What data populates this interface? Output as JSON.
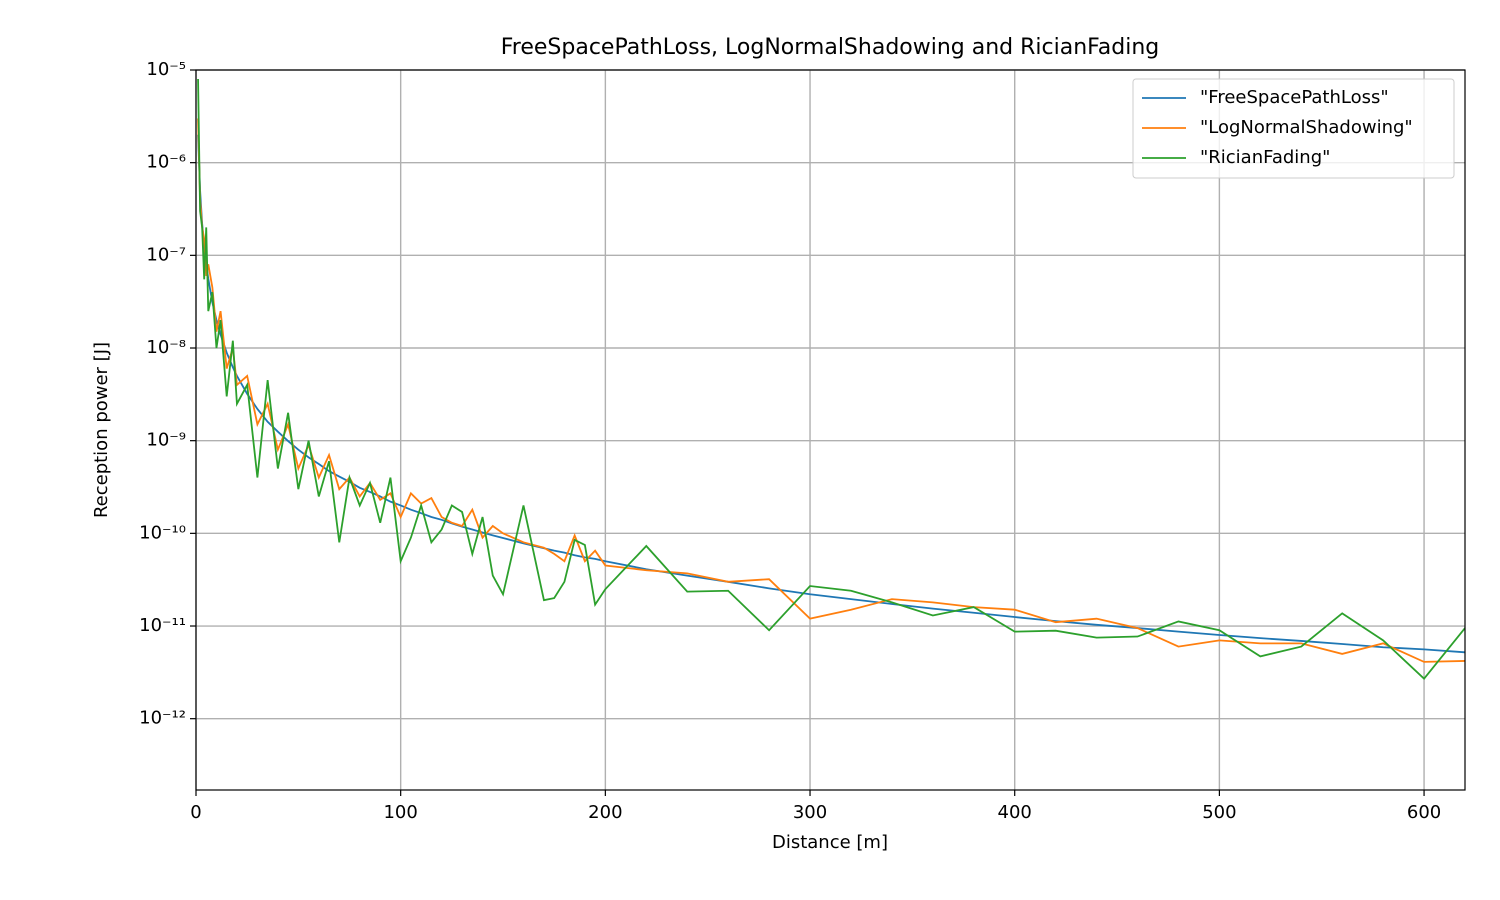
{
  "chart_data": {
    "type": "line",
    "title": "FreeSpacePathLoss, LogNormalShadowing and RicianFading",
    "x_label": "Distance [m]",
    "y_label": "Reception power [J]",
    "y_scale": "log",
    "grid": true,
    "legend": "upper right",
    "xlim": [
      0,
      620
    ],
    "ylim": [
      1.7e-13,
      1e-05
    ],
    "xticks": [
      0,
      100,
      200,
      300,
      400,
      500,
      600
    ],
    "yticks": [
      {
        "value": 1e-05,
        "label": "10⁻⁵"
      },
      {
        "value": 1e-06,
        "label": "10⁻⁶"
      },
      {
        "value": 1e-07,
        "label": "10⁻⁷"
      },
      {
        "value": 1e-08,
        "label": "10⁻⁸"
      },
      {
        "value": 1e-09,
        "label": "10⁻⁹"
      },
      {
        "value": 1e-10,
        "label": "10⁻¹⁰"
      },
      {
        "value": 1e-11,
        "label": "10⁻¹¹"
      },
      {
        "value": 1e-12,
        "label": "10⁻¹²"
      }
    ],
    "x": [
      1,
      2,
      3,
      4,
      5,
      6,
      8,
      10,
      12,
      15,
      18,
      20,
      25,
      30,
      35,
      40,
      45,
      50,
      55,
      60,
      65,
      70,
      75,
      80,
      85,
      90,
      95,
      100,
      105,
      110,
      115,
      120,
      125,
      130,
      135,
      140,
      145,
      150,
      160,
      170,
      175,
      180,
      185,
      190,
      195,
      200,
      220,
      240,
      260,
      280,
      300,
      320,
      340,
      360,
      380,
      400,
      420,
      440,
      460,
      480,
      500,
      520,
      540,
      560,
      580,
      600,
      620
    ],
    "series": [
      {
        "name": "\"FreeSpacePathLoss\"",
        "color": "#1f77b4",
        "values": [
          2e-06,
          5e-07,
          2.2e-07,
          1.25e-07,
          8e-08,
          5.6e-08,
          3.1e-08,
          2e-08,
          1.4e-08,
          8.9e-09,
          6.2e-09,
          5e-09,
          3.2e-09,
          2.2e-09,
          1.6e-09,
          1.25e-09,
          9.9e-10,
          8e-10,
          6.6e-10,
          5.6e-10,
          4.7e-10,
          4.1e-10,
          3.6e-10,
          3.1e-10,
          2.8e-10,
          2.5e-10,
          2.2e-10,
          2e-10,
          1.8e-10,
          1.65e-10,
          1.5e-10,
          1.4e-10,
          1.28e-10,
          1.18e-10,
          1.1e-10,
          1.02e-10,
          9.5e-11,
          8.9e-11,
          7.8e-11,
          6.9e-11,
          6.5e-11,
          6.2e-11,
          5.8e-11,
          5.5e-11,
          5.3e-11,
          5e-11,
          4.1e-11,
          3.5e-11,
          3e-11,
          2.55e-11,
          2.2e-11,
          1.95e-11,
          1.73e-11,
          1.54e-11,
          1.39e-11,
          1.25e-11,
          1.13e-11,
          1.03e-11,
          9.5e-12,
          8.7e-12,
          8e-12,
          7.4e-12,
          6.9e-12,
          6.4e-12,
          5.9e-12,
          5.6e-12,
          5.2e-12
        ]
      },
      {
        "name": "\"LogNormalShadowing\"",
        "color": "#ff7f0e",
        "values": [
          3e-06,
          4e-07,
          2e-07,
          1.5e-07,
          6e-08,
          8e-08,
          4.5e-08,
          1.5e-08,
          2.5e-08,
          6e-09,
          1e-08,
          4e-09,
          5e-09,
          1.5e-09,
          2.5e-09,
          8e-10,
          1.5e-09,
          5e-10,
          9e-10,
          4e-10,
          7e-10,
          3e-10,
          4e-10,
          2.5e-10,
          3.5e-10,
          2.3e-10,
          2.7e-10,
          1.5e-10,
          2.7e-10,
          2.1e-10,
          2.4e-10,
          1.5e-10,
          1.3e-10,
          1.2e-10,
          1.8e-10,
          9e-11,
          1.2e-10,
          1e-10,
          8e-11,
          7e-11,
          6e-11,
          5e-11,
          9.5e-11,
          5e-11,
          6.5e-11,
          4.5e-11,
          4e-11,
          3.7e-11,
          3e-11,
          3.2e-11,
          1.2e-11,
          1.5e-11,
          1.95e-11,
          1.8e-11,
          1.6e-11,
          1.5e-11,
          1.1e-11,
          1.2e-11,
          9.5e-12,
          6e-12,
          7e-12,
          6.5e-12,
          6.5e-12,
          5e-12,
          6.5e-12,
          4.1e-12,
          4.2e-12
        ]
      },
      {
        "name": "\"RicianFading\"",
        "color": "#2ca02c",
        "values": [
          8e-06,
          3e-07,
          2e-07,
          5.5e-08,
          2e-07,
          2.5e-08,
          4e-08,
          1e-08,
          2e-08,
          3e-09,
          1.2e-08,
          2.5e-09,
          4e-09,
          4e-10,
          4.5e-09,
          5e-10,
          2e-09,
          3e-10,
          1e-09,
          2.5e-10,
          6e-10,
          8e-11,
          4e-10,
          2e-10,
          3.5e-10,
          1.3e-10,
          4e-10,
          5e-11,
          9e-11,
          2e-10,
          8e-11,
          1.1e-10,
          2e-10,
          1.7e-10,
          6e-11,
          1.5e-10,
          3.5e-11,
          2.2e-11,
          2e-10,
          1.9e-11,
          2e-11,
          3e-11,
          8.5e-11,
          7.5e-11,
          1.7e-11,
          2.5e-11,
          7.3e-11,
          2.35e-11,
          2.4e-11,
          9e-12,
          2.7e-11,
          2.4e-11,
          1.8e-11,
          1.3e-11,
          1.6e-11,
          8.7e-12,
          8.9e-12,
          7.5e-12,
          7.7e-12,
          1.12e-11,
          9e-12,
          4.7e-12,
          6e-12,
          1.37e-11,
          7e-12,
          2.7e-12,
          9.5e-12
        ]
      }
    ]
  }
}
